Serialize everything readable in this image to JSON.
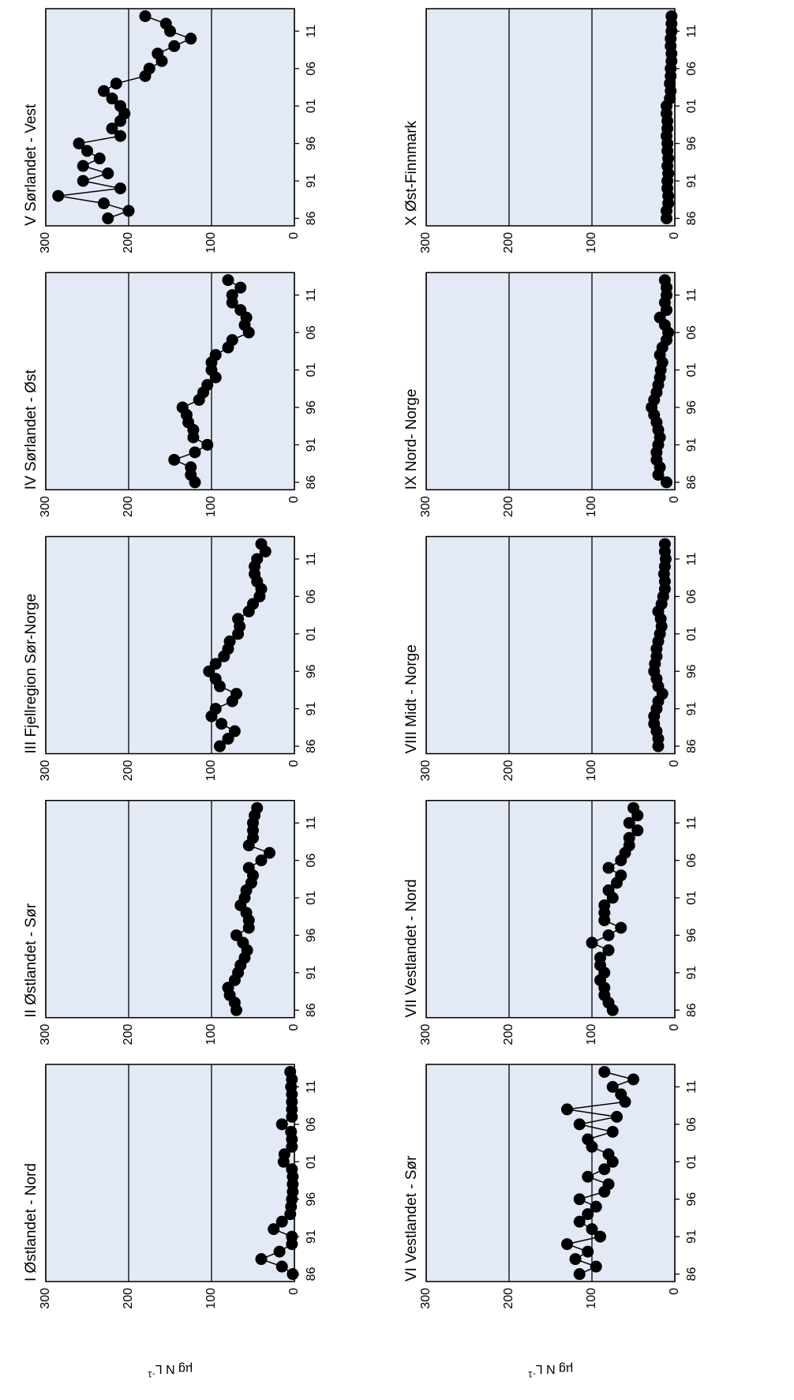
{
  "chart_data": [
    {
      "type": "line",
      "title": "I Østlandet - Nord",
      "y_label": "µg N L",
      "y_label_sup": "-1",
      "color": "#000000",
      "grid": true,
      "x": [
        1986,
        1987,
        1988,
        1989,
        1990,
        1991,
        1992,
        1993,
        1994,
        1995,
        1996,
        1997,
        1998,
        1999,
        2000,
        2001,
        2002,
        2003,
        2004,
        2005,
        2006,
        2007,
        2008,
        2009,
        2010,
        2011,
        2012,
        2013
      ],
      "values": [
        2,
        15,
        40,
        18,
        3,
        3,
        25,
        15,
        5,
        4,
        3,
        2,
        2,
        2,
        3,
        13,
        12,
        3,
        3,
        4,
        15,
        3,
        3,
        3,
        3,
        4,
        3,
        5
      ],
      "xlim": [
        1985,
        2014
      ],
      "ylim": [
        0,
        300
      ],
      "yticks": [
        0,
        100,
        200,
        300
      ],
      "xticks": [
        {
          "value": 1986,
          "label": "86"
        },
        {
          "value": 1991,
          "label": "91"
        },
        {
          "value": 1996,
          "label": "96"
        },
        {
          "value": 2001,
          "label": "01"
        },
        {
          "value": 2006,
          "label": "06"
        },
        {
          "value": 2011,
          "label": "11"
        }
      ]
    },
    {
      "type": "line",
      "title": "II Østlandet - Sør",
      "color": "#000000",
      "grid": true,
      "x": [
        1986,
        1987,
        1988,
        1989,
        1990,
        1991,
        1992,
        1993,
        1994,
        1995,
        1996,
        1997,
        1998,
        1999,
        2000,
        2001,
        2002,
        2003,
        2004,
        2005,
        2006,
        2007,
        2008,
        2009,
        2010,
        2011,
        2012,
        2013
      ],
      "values": [
        70,
        72,
        78,
        80,
        72,
        68,
        65,
        60,
        57,
        62,
        70,
        55,
        55,
        58,
        65,
        60,
        58,
        52,
        50,
        55,
        40,
        30,
        55,
        50,
        50,
        50,
        48,
        45
      ],
      "xlim": [
        1985,
        2014
      ],
      "ylim": [
        0,
        300
      ],
      "yticks": [
        0,
        100,
        200,
        300
      ],
      "xticks": [
        {
          "value": 1986,
          "label": "86"
        },
        {
          "value": 1991,
          "label": "91"
        },
        {
          "value": 1996,
          "label": "96"
        },
        {
          "value": 2001,
          "label": "01"
        },
        {
          "value": 2006,
          "label": "06"
        },
        {
          "value": 2011,
          "label": "11"
        }
      ]
    },
    {
      "type": "line",
      "title": "III Fjellregion Sør-Norge",
      "color": "#000000",
      "grid": true,
      "x": [
        1986,
        1987,
        1988,
        1989,
        1990,
        1991,
        1992,
        1993,
        1994,
        1995,
        1996,
        1997,
        1998,
        1999,
        2000,
        2001,
        2002,
        2003,
        2004,
        2005,
        2006,
        2007,
        2008,
        2009,
        2010,
        2011,
        2012,
        2013
      ],
      "values": [
        90,
        80,
        72,
        88,
        100,
        95,
        75,
        70,
        90,
        95,
        103,
        95,
        85,
        80,
        78,
        68,
        66,
        68,
        55,
        50,
        42,
        40,
        45,
        48,
        48,
        45,
        35,
        40
      ],
      "xlim": [
        1985,
        2014
      ],
      "ylim": [
        0,
        300
      ],
      "yticks": [
        0,
        100,
        200,
        300
      ],
      "xticks": [
        {
          "value": 1986,
          "label": "86"
        },
        {
          "value": 1991,
          "label": "91"
        },
        {
          "value": 1996,
          "label": "96"
        },
        {
          "value": 2001,
          "label": "01"
        },
        {
          "value": 2006,
          "label": "06"
        },
        {
          "value": 2011,
          "label": "11"
        }
      ]
    },
    {
      "type": "line",
      "title": "IV Sørlandet - Øst",
      "color": "#000000",
      "grid": true,
      "x": [
        1986,
        1987,
        1988,
        1989,
        1990,
        1991,
        1992,
        1993,
        1994,
        1995,
        1996,
        1997,
        1998,
        1999,
        2000,
        2001,
        2002,
        2003,
        2004,
        2005,
        2006,
        2007,
        2008,
        2009,
        2010,
        2011,
        2012,
        2013
      ],
      "values": [
        120,
        125,
        125,
        145,
        120,
        105,
        122,
        122,
        128,
        130,
        135,
        115,
        110,
        105,
        95,
        100,
        100,
        95,
        80,
        75,
        55,
        60,
        58,
        65,
        75,
        75,
        65,
        80
      ],
      "xlim": [
        1985,
        2014
      ],
      "ylim": [
        0,
        300
      ],
      "yticks": [
        0,
        100,
        200,
        300
      ],
      "xticks": [
        {
          "value": 1986,
          "label": "86"
        },
        {
          "value": 1991,
          "label": "91"
        },
        {
          "value": 1996,
          "label": "96"
        },
        {
          "value": 2001,
          "label": "01"
        },
        {
          "value": 2006,
          "label": "06"
        },
        {
          "value": 2011,
          "label": "11"
        }
      ]
    },
    {
      "type": "line",
      "title": "V Sørlandet - Vest",
      "color": "#000000",
      "grid": true,
      "x": [
        1986,
        1987,
        1988,
        1989,
        1990,
        1991,
        1992,
        1993,
        1994,
        1995,
        1996,
        1997,
        1998,
        1999,
        2000,
        2001,
        2002,
        2003,
        2004,
        2005,
        2006,
        2007,
        2008,
        2009,
        2010,
        2011,
        2012,
        2013
      ],
      "values": [
        225,
        200,
        230,
        285,
        210,
        255,
        225,
        255,
        235,
        250,
        260,
        210,
        220,
        210,
        205,
        210,
        220,
        230,
        215,
        180,
        175,
        160,
        165,
        145,
        125,
        150,
        155,
        180
      ],
      "xlim": [
        1985,
        2014
      ],
      "ylim": [
        0,
        300
      ],
      "yticks": [
        0,
        100,
        200,
        300
      ],
      "xticks": [
        {
          "value": 1986,
          "label": "86"
        },
        {
          "value": 1991,
          "label": "91"
        },
        {
          "value": 1996,
          "label": "96"
        },
        {
          "value": 2001,
          "label": "01"
        },
        {
          "value": 2006,
          "label": "06"
        },
        {
          "value": 2011,
          "label": "11"
        }
      ]
    },
    {
      "type": "line",
      "title": "VI Vestlandet - Sør",
      "y_label": "µg N L",
      "y_label_sup": "-1",
      "color": "#000000",
      "grid": true,
      "x": [
        1986,
        1987,
        1988,
        1989,
        1990,
        1991,
        1992,
        1993,
        1994,
        1995,
        1996,
        1997,
        1998,
        1999,
        2000,
        2001,
        2002,
        2003,
        2004,
        2005,
        2006,
        2007,
        2008,
        2009,
        2010,
        2011,
        2012,
        2013
      ],
      "values": [
        115,
        95,
        120,
        105,
        130,
        90,
        100,
        115,
        105,
        95,
        115,
        85,
        80,
        105,
        85,
        75,
        80,
        100,
        105,
        75,
        115,
        70,
        130,
        60,
        65,
        75,
        50,
        85
      ],
      "xlim": [
        1985,
        2014
      ],
      "ylim": [
        0,
        300
      ],
      "yticks": [
        0,
        100,
        200,
        300
      ],
      "xticks": [
        {
          "value": 1986,
          "label": "86"
        },
        {
          "value": 1991,
          "label": "91"
        },
        {
          "value": 1996,
          "label": "96"
        },
        {
          "value": 2001,
          "label": "01"
        },
        {
          "value": 2006,
          "label": "06"
        },
        {
          "value": 2011,
          "label": "11"
        }
      ]
    },
    {
      "type": "line",
      "title": "VII Vestlandet - Nord",
      "color": "#000000",
      "grid": true,
      "x": [
        1986,
        1987,
        1988,
        1989,
        1990,
        1991,
        1992,
        1993,
        1994,
        1995,
        1996,
        1997,
        1998,
        1999,
        2000,
        2001,
        2002,
        2003,
        2004,
        2005,
        2006,
        2007,
        2008,
        2009,
        2010,
        2011,
        2012,
        2013
      ],
      "values": [
        75,
        80,
        85,
        85,
        90,
        85,
        90,
        90,
        80,
        100,
        80,
        65,
        85,
        85,
        85,
        75,
        80,
        70,
        65,
        80,
        65,
        60,
        55,
        55,
        45,
        55,
        45,
        50
      ],
      "xlim": [
        1985,
        2014
      ],
      "ylim": [
        0,
        300
      ],
      "yticks": [
        0,
        100,
        200,
        300
      ],
      "xticks": [
        {
          "value": 1986,
          "label": "86"
        },
        {
          "value": 1991,
          "label": "91"
        },
        {
          "value": 1996,
          "label": "96"
        },
        {
          "value": 2001,
          "label": "01"
        },
        {
          "value": 2006,
          "label": "06"
        },
        {
          "value": 2011,
          "label": "11"
        }
      ]
    },
    {
      "type": "line",
      "title": "VIII Midt - Norge",
      "color": "#000000",
      "grid": true,
      "x": [
        1986,
        1987,
        1988,
        1989,
        1990,
        1991,
        1992,
        1993,
        1994,
        1995,
        1996,
        1997,
        1998,
        1999,
        2000,
        2001,
        2002,
        2003,
        2004,
        2005,
        2006,
        2007,
        2008,
        2009,
        2010,
        2011,
        2012,
        2013
      ],
      "values": [
        20,
        20,
        22,
        25,
        25,
        22,
        20,
        15,
        20,
        22,
        25,
        24,
        22,
        22,
        20,
        18,
        16,
        17,
        20,
        16,
        14,
        12,
        12,
        13,
        12,
        11,
        12,
        12
      ],
      "xlim": [
        1985,
        2014
      ],
      "ylim": [
        0,
        300
      ],
      "yticks": [
        0,
        100,
        200,
        300
      ],
      "xticks": [
        {
          "value": 1986,
          "label": "86"
        },
        {
          "value": 1991,
          "label": "91"
        },
        {
          "value": 1996,
          "label": "96"
        },
        {
          "value": 2001,
          "label": "01"
        },
        {
          "value": 2006,
          "label": "06"
        },
        {
          "value": 2011,
          "label": "11"
        }
      ]
    },
    {
      "type": "line",
      "title": "IX Nord- Norge",
      "color": "#000000",
      "grid": true,
      "x": [
        1986,
        1987,
        1988,
        1989,
        1990,
        1991,
        1992,
        1993,
        1994,
        1995,
        1996,
        1997,
        1998,
        1999,
        2000,
        2001,
        2002,
        2003,
        2004,
        2005,
        2006,
        2007,
        2008,
        2009,
        2010,
        2011,
        2012,
        2013
      ],
      "values": [
        10,
        20,
        18,
        22,
        22,
        20,
        18,
        20,
        22,
        25,
        28,
        25,
        22,
        20,
        18,
        17,
        15,
        18,
        15,
        10,
        8,
        12,
        18,
        10,
        12,
        10,
        10,
        12
      ],
      "xlim": [
        1985,
        2014
      ],
      "ylim": [
        0,
        300
      ],
      "yticks": [
        0,
        100,
        200,
        300
      ],
      "xticks": [
        {
          "value": 1986,
          "label": "86"
        },
        {
          "value": 1991,
          "label": "91"
        },
        {
          "value": 1996,
          "label": "96"
        },
        {
          "value": 2001,
          "label": "01"
        },
        {
          "value": 2006,
          "label": "06"
        },
        {
          "value": 2011,
          "label": "11"
        }
      ]
    },
    {
      "type": "line",
      "title": "X Øst-Finnmark",
      "color": "#000000",
      "grid": true,
      "x": [
        1986,
        1987,
        1988,
        1989,
        1990,
        1991,
        1992,
        1993,
        1994,
        1995,
        1996,
        1997,
        1998,
        1999,
        2000,
        2001,
        2002,
        2003,
        2004,
        2005,
        2006,
        2007,
        2008,
        2009,
        2010,
        2011,
        2012,
        2013
      ],
      "values": [
        10,
        10,
        8,
        8,
        9,
        9,
        8,
        9,
        8,
        9,
        9,
        10,
        9,
        9,
        10,
        10,
        6,
        5,
        6,
        5,
        5,
        4,
        4,
        5,
        5,
        4,
        4,
        4
      ],
      "xlim": [
        1985,
        2014
      ],
      "ylim": [
        0,
        300
      ],
      "yticks": [
        0,
        100,
        200,
        300
      ],
      "xticks": [
        {
          "value": 1986,
          "label": "86"
        },
        {
          "value": 1991,
          "label": "91"
        },
        {
          "value": 1996,
          "label": "96"
        },
        {
          "value": 2001,
          "label": "01"
        },
        {
          "value": 2006,
          "label": "06"
        },
        {
          "value": 2011,
          "label": "11"
        }
      ]
    }
  ]
}
